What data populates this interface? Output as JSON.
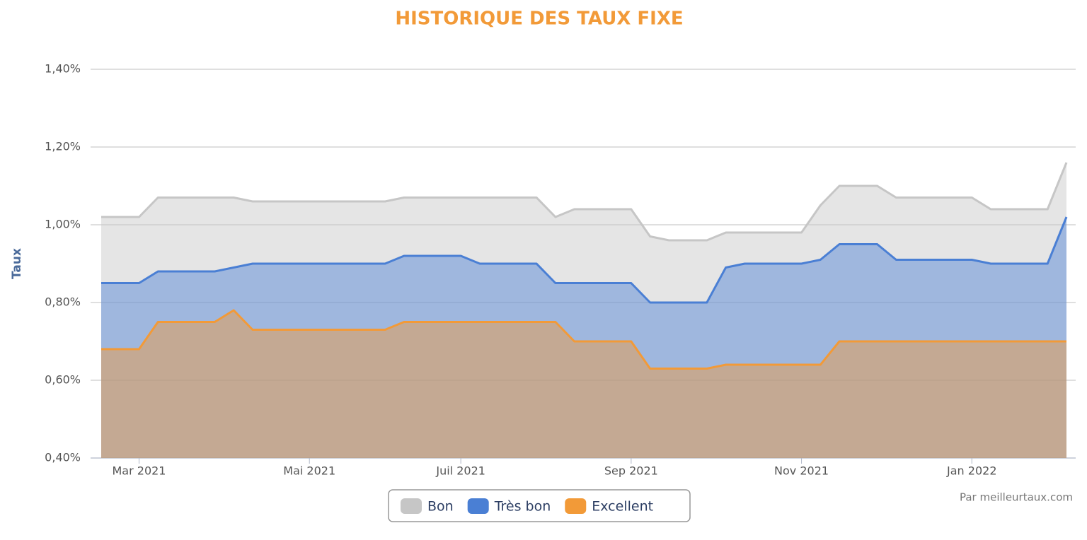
{
  "chart_data": {
    "type": "area",
    "title": "HISTORIQUE DES TAUX FIXE",
    "y_label": "Taux",
    "credit": "Par meilleurtaux.com",
    "categories": [
      null,
      null,
      "Mar 2021",
      null,
      null,
      null,
      null,
      null,
      null,
      null,
      null,
      "Mai 2021",
      null,
      null,
      null,
      null,
      null,
      null,
      null,
      "Juil 2021",
      null,
      null,
      null,
      null,
      null,
      null,
      null,
      null,
      "Sep 2021",
      null,
      null,
      null,
      null,
      null,
      null,
      null,
      null,
      "Nov 2021",
      null,
      null,
      null,
      null,
      null,
      null,
      null,
      null,
      "Jan 2022",
      null,
      null,
      null,
      null,
      null
    ],
    "series": [
      {
        "name": "Bon",
        "color": "#c6c6c6",
        "values": [
          1.02,
          1.02,
          1.02,
          1.07,
          1.07,
          1.07,
          1.07,
          1.07,
          1.06,
          1.06,
          1.06,
          1.06,
          1.06,
          1.06,
          1.06,
          1.06,
          1.07,
          1.07,
          1.07,
          1.07,
          1.07,
          1.07,
          1.07,
          1.07,
          1.02,
          1.04,
          1.04,
          1.04,
          1.04,
          0.97,
          0.96,
          0.96,
          0.96,
          0.98,
          0.98,
          0.98,
          0.98,
          0.98,
          1.05,
          1.1,
          1.1,
          1.1,
          1.07,
          1.07,
          1.07,
          1.07,
          1.07,
          1.04,
          1.04,
          1.04,
          1.04,
          1.16
        ]
      },
      {
        "name": "Très bon",
        "color": "#4a7fd4",
        "values": [
          0.85,
          0.85,
          0.85,
          0.88,
          0.88,
          0.88,
          0.88,
          0.89,
          0.9,
          0.9,
          0.9,
          0.9,
          0.9,
          0.9,
          0.9,
          0.9,
          0.92,
          0.92,
          0.92,
          0.92,
          0.9,
          0.9,
          0.9,
          0.9,
          0.85,
          0.85,
          0.85,
          0.85,
          0.85,
          0.8,
          0.8,
          0.8,
          0.8,
          0.89,
          0.9,
          0.9,
          0.9,
          0.9,
          0.91,
          0.95,
          0.95,
          0.95,
          0.91,
          0.91,
          0.91,
          0.91,
          0.91,
          0.9,
          0.9,
          0.9,
          0.9,
          1.02
        ]
      },
      {
        "name": "Excellent",
        "color": "#f29a38",
        "values": [
          0.68,
          0.68,
          0.68,
          0.75,
          0.75,
          0.75,
          0.75,
          0.78,
          0.73,
          0.73,
          0.73,
          0.73,
          0.73,
          0.73,
          0.73,
          0.73,
          0.75,
          0.75,
          0.75,
          0.75,
          0.75,
          0.75,
          0.75,
          0.75,
          0.75,
          0.7,
          0.7,
          0.7,
          0.7,
          0.63,
          0.63,
          0.63,
          0.63,
          0.64,
          0.64,
          0.64,
          0.64,
          0.64,
          0.64,
          0.7,
          0.7,
          0.7,
          0.7,
          0.7,
          0.7,
          0.7,
          0.7,
          0.7,
          0.7,
          0.7,
          0.7,
          0.7
        ]
      }
    ],
    "ylim": [
      0.4,
      1.4
    ],
    "yticks": [
      {
        "value": 0.4,
        "label": "0,40%"
      },
      {
        "value": 0.6,
        "label": "0,60%"
      },
      {
        "value": 0.8,
        "label": "0,80%"
      },
      {
        "value": 1.0,
        "label": "1,00%"
      },
      {
        "value": 1.2,
        "label": "1,20%"
      },
      {
        "value": 1.4,
        "label": "1,40%"
      }
    ],
    "grid": true
  }
}
